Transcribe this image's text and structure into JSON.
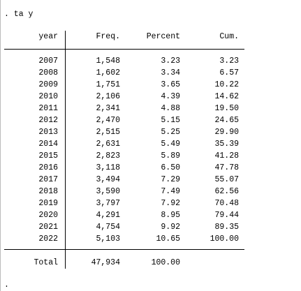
{
  "command": ". ta y",
  "table": {
    "header": [
      "year",
      "Freq.",
      "Percent",
      "Cum."
    ],
    "rows": [
      [
        "2007",
        "1,548",
        "3.23",
        "3.23"
      ],
      [
        "2008",
        "1,602",
        "3.34",
        "6.57"
      ],
      [
        "2009",
        "1,751",
        "3.65",
        "10.22"
      ],
      [
        "2010",
        "2,106",
        "4.39",
        "14.62"
      ],
      [
        "2011",
        "2,341",
        "4.88",
        "19.50"
      ],
      [
        "2012",
        "2,470",
        "5.15",
        "24.65"
      ],
      [
        "2013",
        "2,515",
        "5.25",
        "29.90"
      ],
      [
        "2014",
        "2,631",
        "5.49",
        "35.39"
      ],
      [
        "2015",
        "2,823",
        "5.89",
        "41.28"
      ],
      [
        "2016",
        "3,118",
        "6.50",
        "47.78"
      ],
      [
        "2017",
        "3,494",
        "7.29",
        "55.07"
      ],
      [
        "2018",
        "3,590",
        "7.49",
        "62.56"
      ],
      [
        "2019",
        "3,797",
        "7.92",
        "70.48"
      ],
      [
        "2020",
        "4,291",
        "8.95",
        "79.44"
      ],
      [
        "2021",
        "4,754",
        "9.92",
        "89.35"
      ],
      [
        "2022",
        "5,103",
        "10.65",
        "100.00"
      ]
    ],
    "total": [
      "Total",
      "47,934",
      "100.00"
    ]
  },
  "prompt": "."
}
